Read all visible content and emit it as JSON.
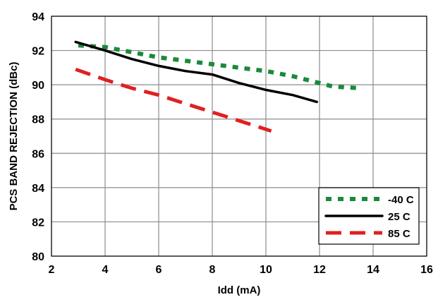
{
  "chart_data": {
    "type": "line",
    "title": "",
    "xlabel": "Idd (mA)",
    "ylabel": "PCS BAND REJECTION (dBc)",
    "xlim": [
      2,
      16
    ],
    "ylim": [
      80,
      94
    ],
    "xticks": [
      2,
      4,
      6,
      8,
      10,
      12,
      14,
      16
    ],
    "yticks": [
      80,
      82,
      84,
      86,
      88,
      90,
      92,
      94
    ],
    "grid": true,
    "legend_position": "bottom-right",
    "series": [
      {
        "name": "-40 C",
        "color": "#1a8a3a",
        "style": "dotted",
        "x": [
          3.0,
          4.0,
          5.0,
          6.0,
          7.0,
          8.0,
          9.0,
          10.0,
          11.0,
          12.0,
          12.5,
          13.5
        ],
        "y": [
          92.3,
          92.2,
          91.9,
          91.6,
          91.4,
          91.2,
          91.0,
          90.8,
          90.5,
          90.1,
          89.9,
          89.8
        ]
      },
      {
        "name": "25 C",
        "color": "#000000",
        "style": "solid",
        "x": [
          2.9,
          4.0,
          5.0,
          6.0,
          7.0,
          8.0,
          9.0,
          10.0,
          11.0,
          11.9
        ],
        "y": [
          92.5,
          92.0,
          91.5,
          91.1,
          90.8,
          90.6,
          90.1,
          89.7,
          89.4,
          89.0
        ]
      },
      {
        "name": "85 C",
        "color": "#e02020",
        "style": "dashed",
        "x": [
          2.9,
          4.0,
          5.0,
          6.0,
          7.0,
          8.0,
          9.0,
          10.2
        ],
        "y": [
          90.9,
          90.3,
          89.8,
          89.4,
          88.9,
          88.4,
          87.9,
          87.3
        ]
      }
    ]
  }
}
